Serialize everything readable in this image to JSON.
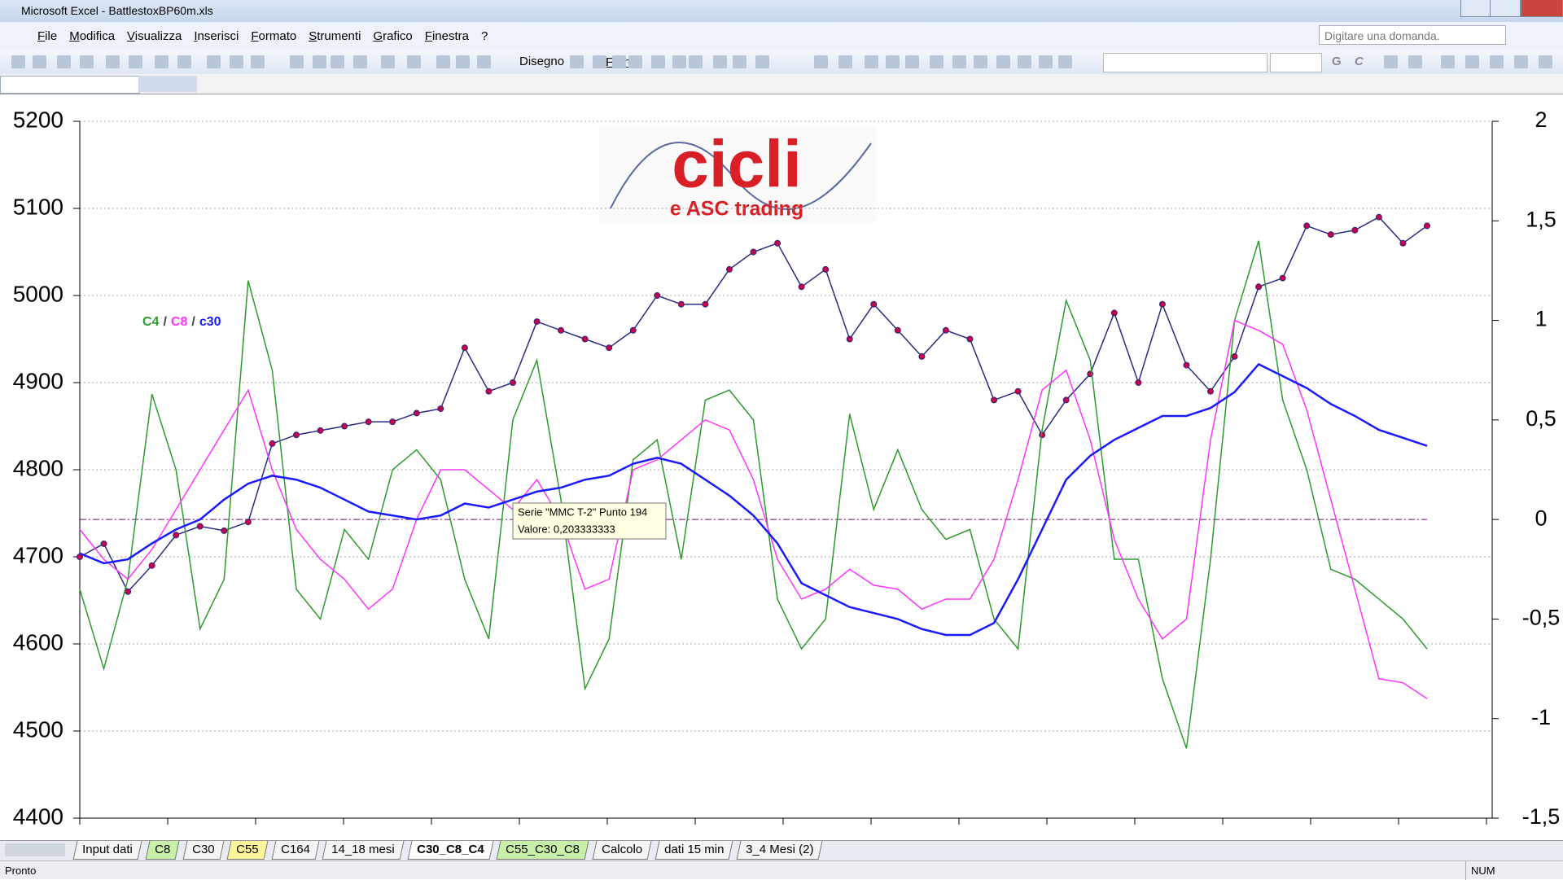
{
  "window": {
    "title": "Microsoft Excel - BattlestoxBP60m.xls"
  },
  "menu": [
    "File",
    "Modifica",
    "Visualizza",
    "Inserisci",
    "Formato",
    "Strumenti",
    "Grafico",
    "Finestra",
    "?"
  ],
  "help_box": "Digitare una domanda.",
  "toolbar": {
    "draw": "Disegno",
    "shapes": "Forme",
    "bold": "G",
    "italic": "C"
  },
  "chart_data": {
    "type": "line",
    "logo": {
      "title": "cicli",
      "subtitle": "e ASC trading"
    },
    "legend_separator": "/",
    "tooltip": {
      "series": "Serie \"MMC T-2\" Punto 194",
      "value": "Valore: 0,203333333"
    },
    "ylim": [
      4400,
      5200
    ],
    "yticks": [
      4400,
      4500,
      4600,
      4700,
      4800,
      4900,
      5000,
      5100,
      5200
    ],
    "y2lim": [
      -1.5,
      2
    ],
    "y2ticks": [
      {
        "value": -1.5,
        "label": "-1,5"
      },
      -1,
      {
        "value": -0.5,
        "label": "-0,5"
      },
      0,
      {
        "value": 0.5,
        "label": "0,5"
      },
      1,
      {
        "value": 1.5,
        "label": "1,5"
      },
      2
    ],
    "grid": true,
    "series": [
      {
        "color": "#2a2a80",
        "marker_color": "#c8004a",
        "values": [
          4700,
          4715,
          4660,
          4690,
          4725,
          4735,
          4730,
          4740,
          4830,
          4840,
          4845,
          4850,
          4855,
          4855,
          4865,
          4870,
          4940,
          4890,
          4900,
          4970,
          4960,
          4950,
          4940,
          4960,
          5000,
          4990,
          4990,
          5030,
          5050,
          5060,
          5010,
          5030,
          4950,
          4990,
          4960,
          4930,
          4960,
          4950,
          4880,
          4890,
          4840,
          4880,
          4910,
          4980,
          4900,
          4990,
          4920,
          4890,
          4930,
          5010,
          5020,
          5080,
          5070,
          5075,
          5090,
          5060,
          5080
        ]
      },
      {
        "name": "C4",
        "color": "#2e9a2e",
        "axis": "y2",
        "values": [
          -0.35,
          -0.75,
          -0.3,
          0.63,
          0.25,
          -0.55,
          -0.3,
          1.2,
          0.75,
          -0.35,
          -0.5,
          -0.05,
          -0.2,
          0.25,
          0.35,
          0.2,
          -0.3,
          -0.6,
          0.5,
          0.8,
          0.1,
          -0.85,
          -0.6,
          0.3,
          0.4,
          -0.2,
          0.6,
          0.65,
          0.5,
          -0.4,
          -0.65,
          -0.5,
          0.53,
          0.05,
          0.35,
          0.05,
          -0.1,
          -0.05,
          -0.5,
          -0.65,
          0.45,
          1.1,
          0.8,
          -0.2,
          -0.2,
          -0.8,
          -1.15,
          -0.2,
          1.0,
          1.4,
          0.6,
          0.25,
          -0.25,
          -0.3,
          -0.4,
          -0.5,
          -0.65
        ]
      },
      {
        "name": "C8",
        "color": "#ff33ff",
        "axis": "y2",
        "values": [
          -0.05,
          -0.2,
          -0.3,
          -0.15,
          0.05,
          0.25,
          0.45,
          0.65,
          0.25,
          -0.05,
          -0.2,
          -0.3,
          -0.45,
          -0.35,
          0,
          0.25,
          0.25,
          0.15,
          0.05,
          0.2,
          0,
          -0.35,
          -0.3,
          0.25,
          0.3,
          0.4,
          0.5,
          0.45,
          0.2,
          -0.2,
          -0.4,
          -0.35,
          -0.25,
          -0.33,
          -0.35,
          -0.45,
          -0.4,
          -0.4,
          -0.2,
          0.2,
          0.65,
          0.75,
          0.4,
          -0.1,
          -0.4,
          -0.6,
          -0.5,
          0.4,
          1.0,
          0.95,
          0.88,
          0.55,
          0.1,
          -0.35,
          -0.8,
          -0.82,
          -0.9
        ]
      },
      {
        "name": "c30",
        "color": "#1a1aff",
        "axis": "y2",
        "values": [
          -0.17,
          -0.22,
          -0.2,
          -0.12,
          -0.05,
          0,
          0.1,
          0.18,
          0.22,
          0.2,
          0.16,
          0.1,
          0.04,
          0.02,
          0,
          0.02,
          0.08,
          0.06,
          0.1,
          0.14,
          0.16,
          0.2,
          0.22,
          0.28,
          0.31,
          0.28,
          0.2,
          0.12,
          0.02,
          -0.12,
          -0.32,
          -0.38,
          -0.44,
          -0.47,
          -0.5,
          -0.55,
          -0.58,
          -0.58,
          -0.52,
          -0.3,
          -0.05,
          0.2,
          0.32,
          0.4,
          0.46,
          0.52,
          0.52,
          0.56,
          0.64,
          0.78,
          0.72,
          0.66,
          0.58,
          0.52,
          0.45,
          0.41,
          0.37
        ]
      }
    ]
  },
  "sheets": [
    "Input dati",
    "C8",
    "C30",
    "C55",
    "C164",
    "14_18 mesi",
    "C30_C8_C4",
    "C55_C30_C8",
    "Calcolo",
    "dati 15 min",
    "3_4 Mesi (2)"
  ],
  "status": {
    "left": "Pronto",
    "right": "NUM"
  }
}
